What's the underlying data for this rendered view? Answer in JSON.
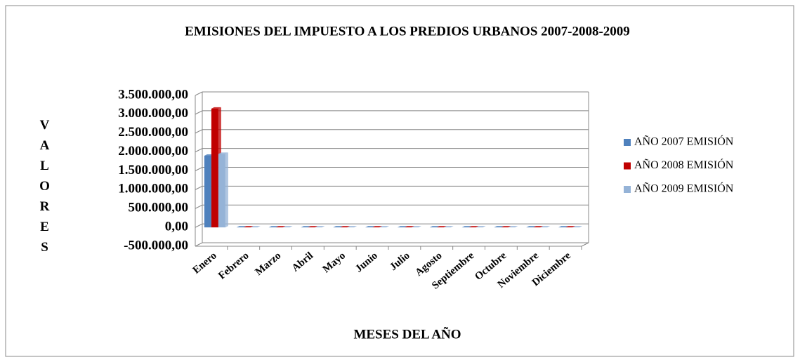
{
  "chart_data": {
    "type": "bar",
    "title": "EMISIONES DEL IMPUESTO A LOS PREDIOS URBANOS 2007-2008-2009",
    "y_label": "VALORES",
    "x_label": "MESES DEL AÑO",
    "categories": [
      "Enero",
      "Febrero",
      "Marzo",
      "Abril",
      "Mayo",
      "Junio",
      "Julio",
      "Agosto",
      "Septiembre",
      "Octubre",
      "Noviembre",
      "Diciembre"
    ],
    "series": [
      {
        "name": "AÑO 2007 EMISIÓN",
        "color": "#4f81bd",
        "values": [
          1900000,
          0,
          0,
          0,
          0,
          0,
          0,
          0,
          0,
          0,
          0,
          0
        ]
      },
      {
        "name": "AÑO 2008 EMISIÓN",
        "color": "#c00000",
        "values": [
          3150000,
          0,
          0,
          0,
          0,
          0,
          0,
          0,
          0,
          0,
          0,
          0
        ]
      },
      {
        "name": "AÑO 2009 EMISIÓN",
        "color": "#95b3d7",
        "values": [
          1950000,
          0,
          0,
          0,
          0,
          0,
          0,
          0,
          0,
          0,
          0,
          0
        ]
      }
    ],
    "ylim": [
      -500000,
      3500000
    ],
    "yticks": [
      {
        "value": -500000,
        "label": "-500.000,00"
      },
      {
        "value": 0,
        "label": "0,00"
      },
      {
        "value": 500000,
        "label": "500.000,00"
      },
      {
        "value": 1000000,
        "label": "1.000.000,00"
      },
      {
        "value": 1500000,
        "label": "1.500.000,00"
      },
      {
        "value": 2000000,
        "label": "2.000.000,00"
      },
      {
        "value": 2500000,
        "label": "2.500.000,00"
      },
      {
        "value": 3000000,
        "label": "3.000.000,00"
      },
      {
        "value": 3500000,
        "label": "3.500.000,00"
      }
    ],
    "grid": true,
    "legend": "right"
  }
}
